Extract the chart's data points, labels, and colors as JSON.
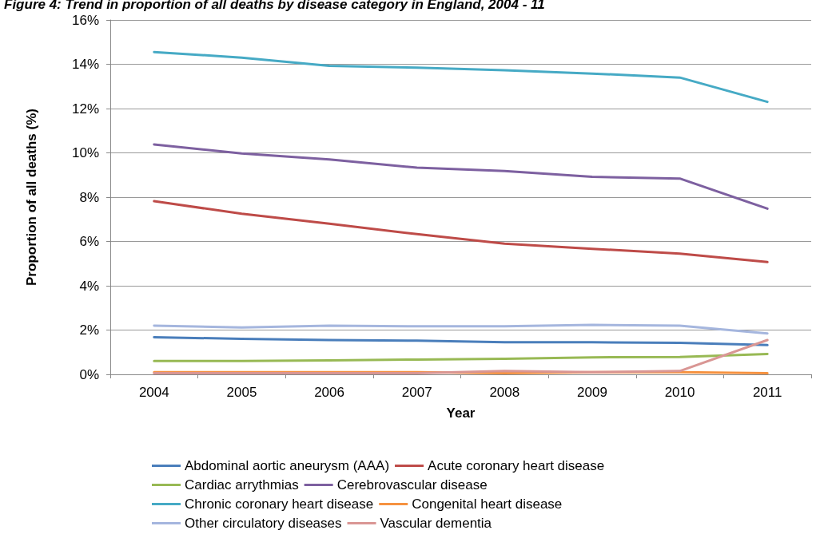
{
  "chart_data": {
    "type": "line",
    "title": "Figure 4: Trend in proportion of all deaths by disease category in England, 2004 - 11",
    "xlabel": "Year",
    "ylabel": "Proportion of all deaths (%)",
    "categories": [
      "2004",
      "2005",
      "2006",
      "2007",
      "2008",
      "2009",
      "2010",
      "2011"
    ],
    "ylim": [
      0,
      16
    ],
    "yticks": [
      {
        "value": 0,
        "label": "0%"
      },
      {
        "value": 2,
        "label": "2%"
      },
      {
        "value": 4,
        "label": "4%"
      },
      {
        "value": 6,
        "label": "6%"
      },
      {
        "value": 8,
        "label": "8%"
      },
      {
        "value": 10,
        "label": "10%"
      },
      {
        "value": 12,
        "label": "12%"
      },
      {
        "value": 14,
        "label": "14%"
      },
      {
        "value": 16,
        "label": "16%"
      }
    ],
    "grid": "y",
    "legend": "bottom",
    "marker": "none",
    "line_style": "solid",
    "series": [
      {
        "name": "Abdominal aortic aneurysm (AAA)",
        "color": "#4a7ebb",
        "values": [
          1.68,
          1.6,
          1.55,
          1.52,
          1.45,
          1.45,
          1.42,
          1.32
        ]
      },
      {
        "name": "Acute coronary heart disease",
        "color": "#be4b48",
        "values": [
          7.82,
          7.25,
          6.8,
          6.33,
          5.9,
          5.67,
          5.45,
          5.07
        ]
      },
      {
        "name": "Cardiac arrythmias",
        "color": "#98b954",
        "values": [
          0.6,
          0.6,
          0.63,
          0.67,
          0.7,
          0.77,
          0.78,
          0.92
        ]
      },
      {
        "name": "Cerebrovascular disease",
        "color": "#7d60a0",
        "values": [
          10.38,
          9.97,
          9.7,
          9.33,
          9.18,
          8.92,
          8.84,
          7.48
        ]
      },
      {
        "name": "Chronic coronary heart disease",
        "color": "#46aac5",
        "values": [
          14.55,
          14.3,
          13.93,
          13.85,
          13.73,
          13.58,
          13.4,
          12.3
        ]
      },
      {
        "name": "Congenital heart disease",
        "color": "#f69240",
        "values": [
          0.1,
          0.1,
          0.1,
          0.1,
          0.05,
          0.1,
          0.1,
          0.05
        ]
      },
      {
        "name": "Other circulatory diseases",
        "color": "#a5b6de",
        "values": [
          2.2,
          2.12,
          2.2,
          2.17,
          2.17,
          2.23,
          2.2,
          1.85
        ]
      },
      {
        "name": "Vascular dementia",
        "color": "#d99694",
        "values": [
          0.05,
          0.05,
          0.05,
          0.05,
          0.15,
          0.1,
          0.15,
          1.55
        ]
      }
    ]
  }
}
